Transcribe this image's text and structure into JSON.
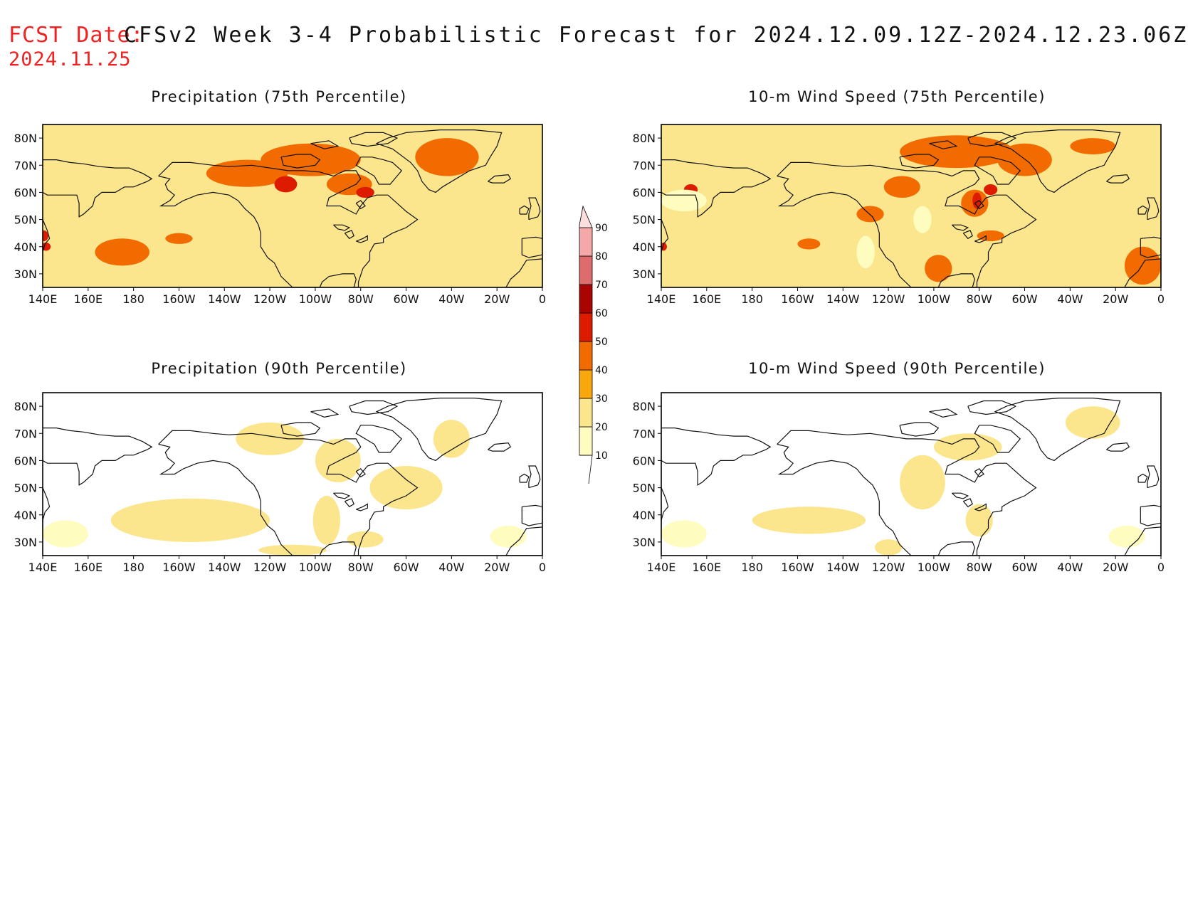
{
  "header": {
    "fcst_label": "FCST Date:",
    "fcst_date": "2024.11.25",
    "title": "CFSv2 Week 3-4 Probabilistic Forecast for 2024.12.09.12Z-2024.12.23.06Z"
  },
  "lon_ticks": [
    "140E",
    "160E",
    "180",
    "160W",
    "140W",
    "120W",
    "100W",
    "80W",
    "60W",
    "40W",
    "20W",
    "0"
  ],
  "lat_ticks": [
    "30N",
    "40N",
    "50N",
    "60N",
    "70N",
    "80N"
  ],
  "colorbar": {
    "levels": [
      "10",
      "20",
      "30",
      "40",
      "50",
      "60",
      "70",
      "80",
      "90"
    ],
    "colors": [
      "#fffcc0",
      "#fbe68e",
      "#f8a80d",
      "#f26b00",
      "#dc1b00",
      "#a90400",
      "#df6c6c",
      "#f4a8a8",
      "#fddede"
    ]
  },
  "panels": [
    {
      "id": "precip75",
      "title": "Precipitation (75th Percentile)",
      "level": "high"
    },
    {
      "id": "wind75",
      "title": "10-m Wind Speed (75th Percentile)",
      "level": "high"
    },
    {
      "id": "precip90",
      "title": "Precipitation (90th Percentile)",
      "level": "low"
    },
    {
      "id": "wind90",
      "title": "10-m Wind Speed (90th Percentile)",
      "level": "low"
    }
  ]
}
